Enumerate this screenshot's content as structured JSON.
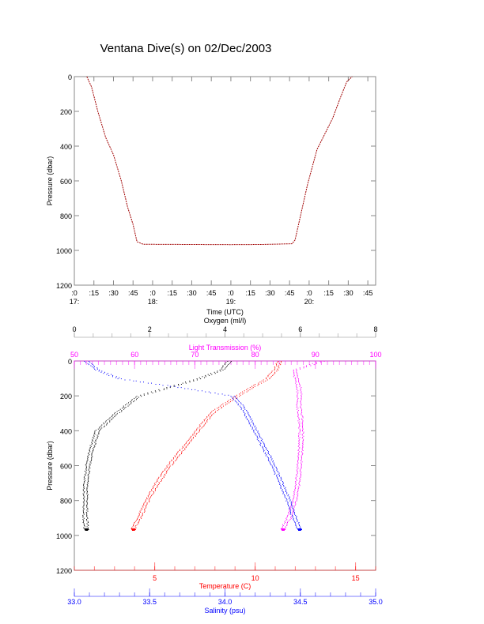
{
  "title": "Ventana Dive(s) on 02/Dec/2003",
  "chart_data": [
    {
      "type": "line",
      "title": "Ventana Dive(s) on 02/Dec/2003",
      "xlabel": "Time (UTC)",
      "ylabel": "Pressure (dbar)",
      "xlim_hours": [
        17.0,
        20.85
      ],
      "ylim": [
        1200,
        0
      ],
      "xticks": [
        ":0",
        ":15",
        ":30",
        ":45",
        ":0",
        ":15",
        ":30",
        ":45",
        ":0",
        ":15",
        ":30",
        ":45",
        ":0",
        ":15",
        ":30",
        ":45"
      ],
      "xhours": [
        "17:",
        "18:",
        "19:",
        "20:"
      ],
      "yticks": [
        0,
        200,
        400,
        600,
        800,
        1000,
        1200
      ],
      "color": "#a00000",
      "series": {
        "name": "dive",
        "time_hours": [
          17.16,
          17.22,
          17.3,
          17.4,
          17.5,
          17.6,
          17.68,
          17.75,
          17.8,
          17.88,
          18.0,
          18.5,
          19.0,
          19.4,
          19.78,
          19.82,
          19.9,
          19.98,
          20.1,
          20.2,
          20.3,
          20.4,
          20.48,
          20.55
        ],
        "pressure": [
          0,
          60,
          200,
          350,
          450,
          600,
          750,
          850,
          950,
          965,
          965,
          966,
          967,
          966,
          962,
          940,
          780,
          620,
          420,
          330,
          240,
          120,
          30,
          0
        ]
      }
    },
    {
      "type": "scatter",
      "ylabel": "Pressure (dbar)",
      "ylim": [
        1200,
        0
      ],
      "yticks": [
        0,
        200,
        400,
        600,
        800,
        1000,
        1200
      ],
      "axes": {
        "oxygen": {
          "label": "Oxygen (ml/l)",
          "range": [
            0,
            8
          ],
          "ticks": [
            0,
            2,
            4,
            6,
            8
          ],
          "color": "#000000"
        },
        "transmission": {
          "label": "Light Transmission (%)",
          "range": [
            50,
            100
          ],
          "ticks": [
            50,
            60,
            70,
            80,
            90,
            100
          ],
          "color": "#ff00ff"
        },
        "temperature": {
          "label": "Temperature (C)",
          "range": [
            1,
            16
          ],
          "ticks": [
            5,
            10,
            15
          ],
          "color": "#ff0000"
        },
        "salinity": {
          "label": "Salinity (psu)",
          "range": [
            33.0,
            35.0
          ],
          "ticks": [
            "33.0",
            "33.5",
            "34.0",
            "34.5",
            "35.0"
          ],
          "color": "#0000ff"
        }
      },
      "pressure": [
        0,
        50,
        100,
        150,
        200,
        250,
        300,
        400,
        500,
        600,
        700,
        800,
        900,
        960
      ],
      "series": [
        {
          "name": "Oxygen",
          "axis": "oxygen",
          "values": [
            4.1,
            3.9,
            3.3,
            2.5,
            1.7,
            1.4,
            1.1,
            0.6,
            0.45,
            0.35,
            0.3,
            0.28,
            0.28,
            0.3
          ]
        },
        {
          "name": "Light Transmission",
          "axis": "transmission",
          "values": [
            91,
            86.5,
            86.8,
            87.2,
            87.3,
            87.2,
            87.4,
            87.6,
            87.5,
            87.3,
            87,
            86.5,
            85.5,
            84.5
          ]
        },
        {
          "name": "Temperature",
          "axis": "temperature",
          "values": [
            11.2,
            11,
            10.6,
            9.8,
            9.1,
            8.4,
            7.8,
            7.1,
            6.4,
            5.7,
            5.1,
            4.6,
            4.2,
            3.9
          ]
        },
        {
          "name": "Salinity",
          "axis": "salinity",
          "values": [
            33.08,
            33.15,
            33.3,
            33.7,
            34.05,
            34.1,
            34.14,
            34.2,
            34.26,
            34.32,
            34.37,
            34.42,
            34.46,
            34.49
          ]
        }
      ]
    }
  ]
}
